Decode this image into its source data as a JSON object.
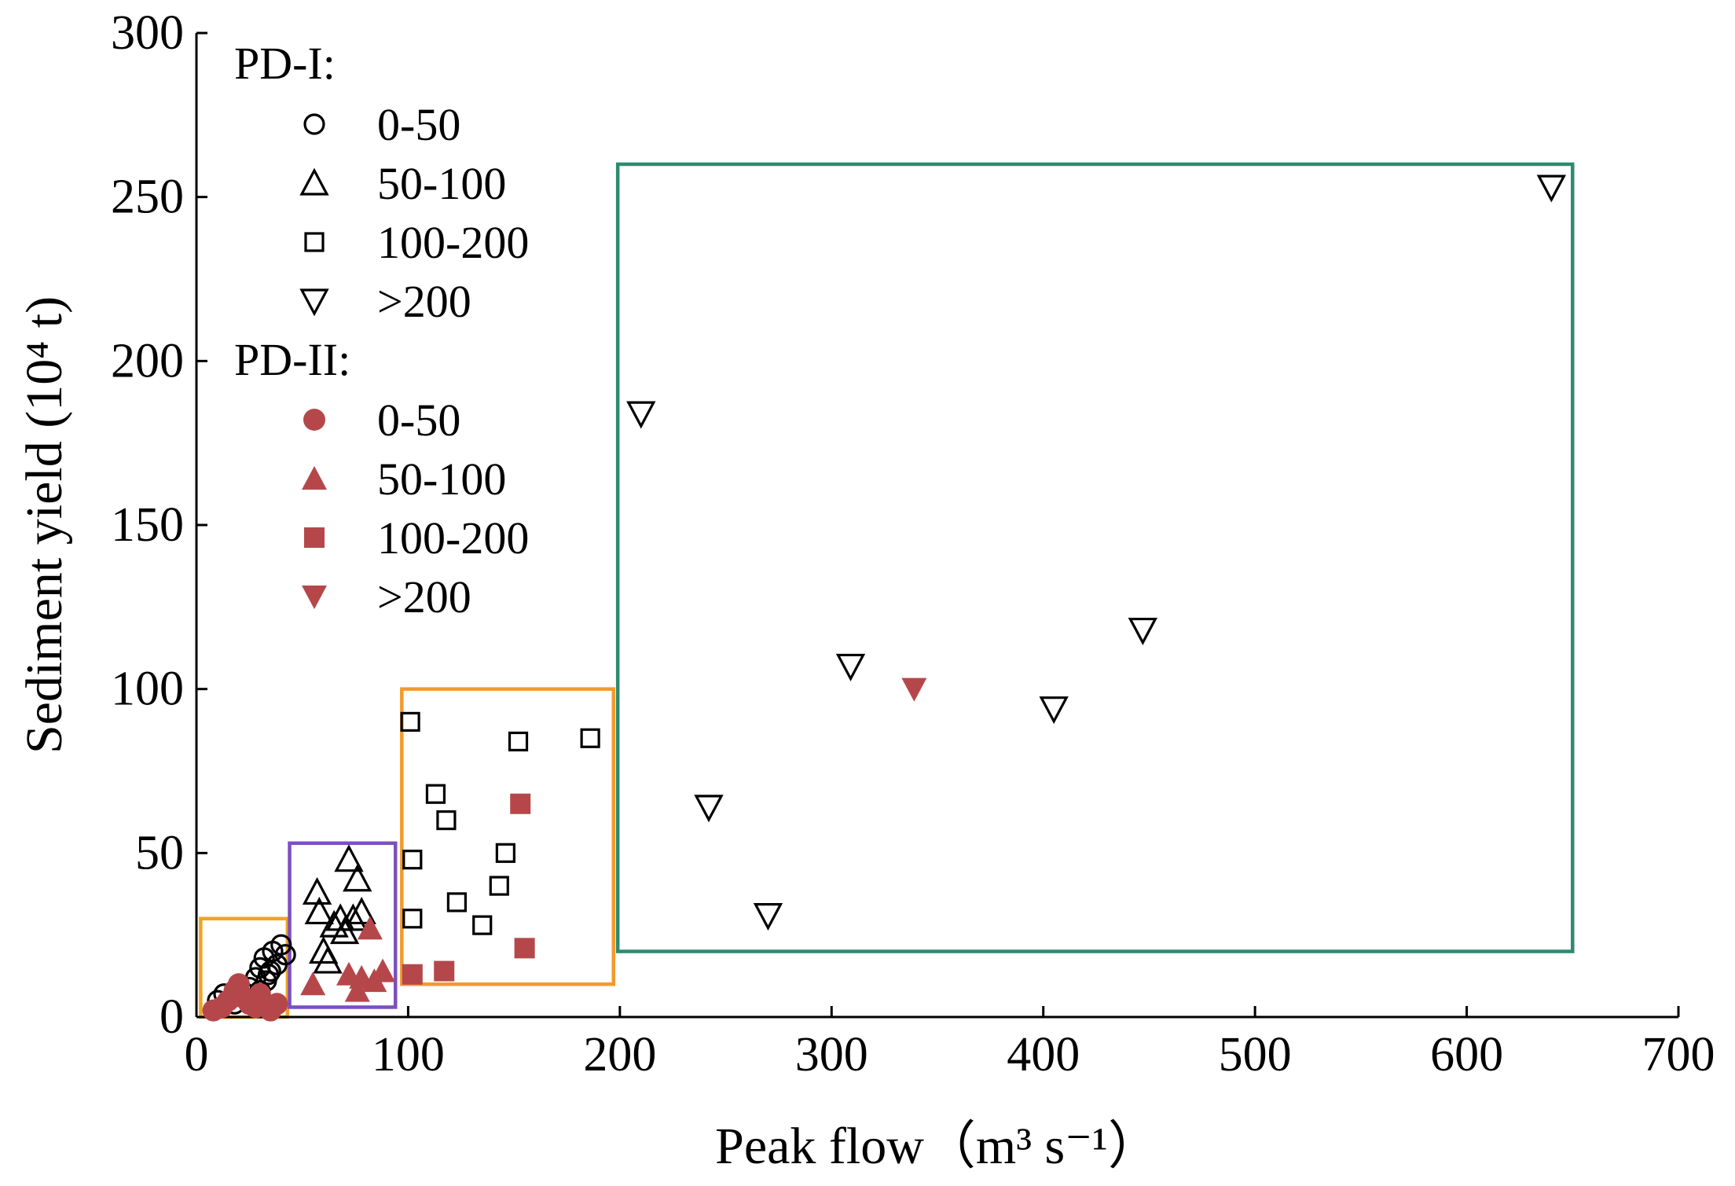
{
  "chart_data": {
    "type": "scatter",
    "xlabel": "Peak flow（m³ s⁻¹）",
    "ylabel": "Sediment yield (10⁴ t)",
    "xlim": [
      0,
      700
    ],
    "ylim": [
      0,
      300
    ],
    "xticks": [
      "0",
      "100",
      "200",
      "300",
      "400",
      "500",
      "600",
      "700"
    ],
    "yticks": [
      "0",
      "50",
      "100",
      "150",
      "200",
      "250",
      "300"
    ],
    "legend": {
      "groups": [
        {
          "title": "PD-I:",
          "entries": [
            "0-50",
            "50-100",
            "100-200",
            ">200"
          ]
        },
        {
          "title": "PD-II:",
          "entries": [
            "0-50",
            "50-100",
            "100-200",
            ">200"
          ]
        }
      ]
    },
    "colors": {
      "pd1": "#000000",
      "pd2": "#b5474b",
      "box_0_50": "#f0a320",
      "box_50_100": "#7b4fc0",
      "box_100_200": "#f39a2a",
      "box_gt200": "#2e8a6f"
    },
    "boxes": [
      {
        "label": "0-50",
        "x": [
          2,
          43
        ],
        "y": [
          0,
          30
        ],
        "color_key": "box_0_50"
      },
      {
        "label": "50-100",
        "x": [
          44,
          94
        ],
        "y": [
          3,
          53
        ],
        "color_key": "box_50_100"
      },
      {
        "label": "100-200",
        "x": [
          97,
          197
        ],
        "y": [
          10,
          100
        ],
        "color_key": "box_100_200"
      },
      {
        "label": ">200",
        "x": [
          199,
          650
        ],
        "y": [
          20,
          260
        ],
        "color_key": "box_gt200"
      }
    ],
    "series": [
      {
        "name": "PD-I 0-50",
        "marker": "circle",
        "filled": false,
        "color_key": "pd1",
        "x": [
          10,
          13,
          18,
          22,
          25,
          28,
          30,
          32,
          33,
          35,
          36,
          38,
          40,
          42,
          30,
          34
        ],
        "y": [
          5,
          7,
          4,
          6,
          9,
          12,
          15,
          18,
          11,
          14,
          20,
          16,
          22,
          19,
          8,
          13
        ]
      },
      {
        "name": "PD-I 50-100",
        "marker": "triangle-up",
        "filled": false,
        "color_key": "pd1",
        "x": [
          57,
          58,
          60,
          62,
          65,
          68,
          70,
          72,
          74,
          76,
          78
        ],
        "y": [
          38,
          32,
          20,
          17,
          28,
          30,
          26,
          48,
          30,
          42,
          32
        ]
      },
      {
        "name": "PD-I 100-200",
        "marker": "square",
        "filled": false,
        "color_key": "pd1",
        "x": [
          101,
          102,
          102,
          113,
          118,
          123,
          135,
          143,
          146,
          152,
          186
        ],
        "y": [
          90,
          48,
          30,
          68,
          60,
          35,
          28,
          40,
          50,
          84,
          85
        ]
      },
      {
        "name": "PD-I >200",
        "marker": "triangle-down",
        "filled": false,
        "color_key": "pd1",
        "x": [
          210,
          242,
          270,
          309,
          405,
          447,
          640
        ],
        "y": [
          184,
          64,
          31,
          107,
          94,
          118,
          253
        ]
      },
      {
        "name": "PD-II 0-50",
        "marker": "circle",
        "filled": true,
        "color_key": "pd2",
        "x": [
          8,
          12,
          15,
          18,
          20,
          22,
          25,
          28,
          30,
          35,
          38
        ],
        "y": [
          2,
          3,
          5,
          8,
          10,
          6,
          4,
          3,
          7,
          2,
          4
        ]
      },
      {
        "name": "PD-II 50-100",
        "marker": "triangle-up",
        "filled": true,
        "color_key": "pd2",
        "x": [
          55,
          72,
          76,
          78,
          82,
          84,
          88
        ],
        "y": [
          10,
          13,
          8,
          12,
          27,
          11,
          14
        ]
      },
      {
        "name": "PD-II 100-200",
        "marker": "square",
        "filled": true,
        "color_key": "pd2",
        "x": [
          102,
          117,
          153,
          155
        ],
        "y": [
          13,
          14,
          65,
          21
        ]
      },
      {
        "name": "PD-II >200",
        "marker": "triangle-down",
        "filled": true,
        "color_key": "pd2",
        "x": [
          339
        ],
        "y": [
          100
        ]
      }
    ]
  }
}
